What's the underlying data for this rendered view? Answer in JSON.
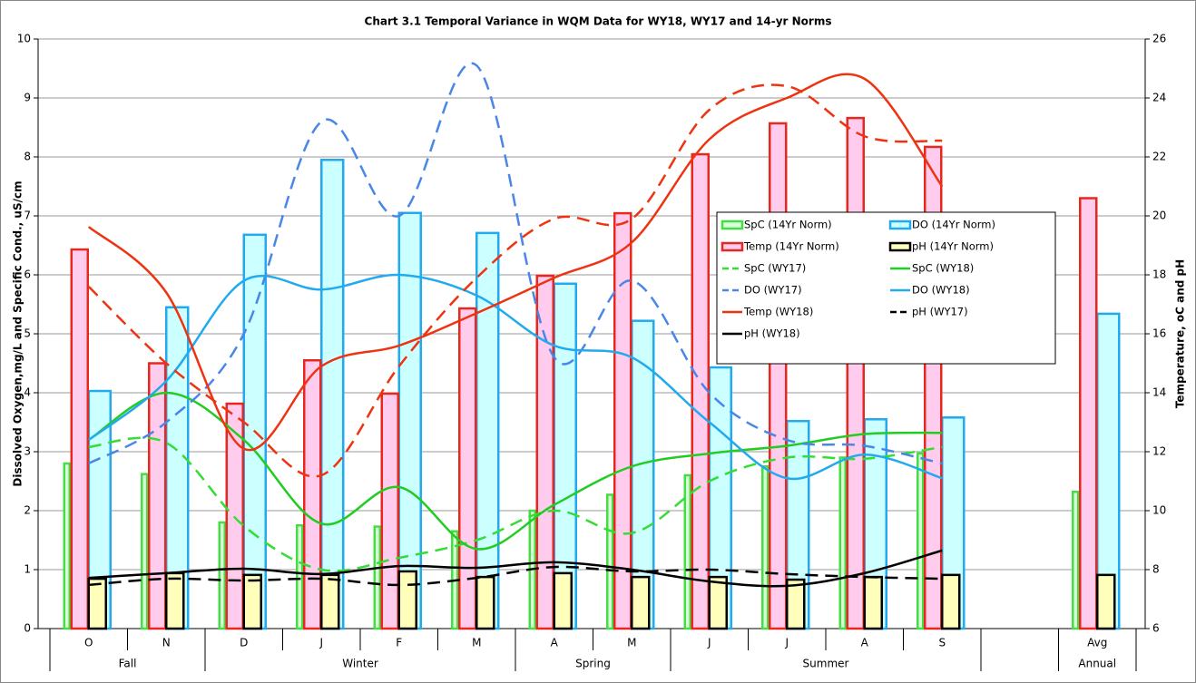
{
  "chart_data": {
    "type": "combo",
    "title": "Chart 3.1  Temporal Variance in WQM Data for WY18, WY17 and 14-yr Norms",
    "y_label": "Dissolved Oxygen,mg/L and Specific Cond., uS/cm",
    "y2_label": "Temperature, oC and pH",
    "categories": [
      "O",
      "N",
      "D",
      "J",
      "F",
      "M",
      "A",
      "M",
      "J",
      "J",
      "A",
      "S",
      null,
      "Avg"
    ],
    "category_groups": [
      "Fall",
      "Fall",
      "Winter",
      "Winter",
      "Winter",
      "Winter",
      "Spring",
      "Spring",
      "Summer",
      "Summer",
      "Summer",
      "Summer",
      null,
      "Annual"
    ],
    "ylim": [
      0,
      10
    ],
    "yticks": [
      0,
      1,
      2,
      3,
      4,
      5,
      6,
      7,
      8,
      9,
      10
    ],
    "y2lim": [
      6,
      26
    ],
    "y2ticks": [
      6,
      8,
      10,
      12,
      14,
      16,
      18,
      20,
      22,
      24,
      26
    ],
    "grid": true,
    "legend": "center-right",
    "series": [
      {
        "name": "SpC (14Yr Norm)",
        "kind": "bar",
        "color": "#44dd44",
        "fill": "#d8ffd8",
        "values": [
          2.8,
          2.62,
          1.8,
          1.75,
          1.73,
          1.65,
          2.0,
          2.27,
          2.6,
          2.75,
          2.9,
          2.97,
          null,
          2.32
        ]
      },
      {
        "name": "DO (14Yr Norm)",
        "kind": "bar",
        "color": "#22aaee",
        "fill": "#ccffff",
        "values": [
          4.03,
          5.45,
          6.68,
          7.95,
          7.05,
          6.71,
          5.85,
          5.22,
          4.43,
          3.52,
          3.55,
          3.58,
          null,
          5.34
        ]
      },
      {
        "name": "Temp (14Yr Norm)",
        "kind": "bar",
        "axis": "y2",
        "color": "#e8281e",
        "fill": "#ffccee",
        "values": [
          18.86,
          15.0,
          13.63,
          15.1,
          13.97,
          16.86,
          17.97,
          20.09,
          22.09,
          23.14,
          23.32,
          22.34,
          null,
          20.6
        ]
      },
      {
        "name": "pH (14Yr Norm)",
        "kind": "bar",
        "axis": "y2",
        "color": "#000000",
        "fill": "#ffffbb",
        "values": [
          7.69,
          7.88,
          7.82,
          7.82,
          7.94,
          7.75,
          7.88,
          7.75,
          7.75,
          7.66,
          7.75,
          7.82,
          null,
          7.82
        ]
      },
      {
        "name": "SpC (WY17)",
        "kind": "line",
        "dash": true,
        "color": "#33dd33",
        "values": [
          3.08,
          3.15,
          1.74,
          1.0,
          1.2,
          1.5,
          2.0,
          1.62,
          2.5,
          2.9,
          2.88,
          3.08,
          null,
          null
        ]
      },
      {
        "name": "SpC (WY18)",
        "kind": "line",
        "color": "#22cc22",
        "values": [
          3.2,
          4.0,
          3.2,
          1.78,
          2.4,
          1.35,
          2.1,
          2.75,
          2.97,
          3.1,
          3.3,
          3.32,
          null,
          null
        ]
      },
      {
        "name": "DO (WY17)",
        "kind": "line",
        "dash": true,
        "color": "#4a86e8",
        "values": [
          2.8,
          3.5,
          5.0,
          8.6,
          7.0,
          9.55,
          4.6,
          5.9,
          4.0,
          3.2,
          3.1,
          2.8,
          null,
          null
        ]
      },
      {
        "name": "DO (WY18)",
        "kind": "line",
        "color": "#22aaee",
        "values": [
          3.2,
          4.2,
          5.9,
          5.75,
          6.0,
          5.65,
          4.8,
          4.6,
          3.5,
          2.55,
          2.95,
          2.55,
          null,
          null
        ]
      },
      {
        "name": "Temp (WY18)",
        "kind": "line",
        "axis": "y2",
        "color": "#ee3311",
        "values": [
          19.63,
          17.4,
          12.1,
          14.9,
          15.6,
          16.7,
          17.9,
          19.1,
          22.6,
          24.0,
          24.65,
          21.0,
          null,
          null
        ]
      },
      {
        "name": "pH (WY17)",
        "kind": "line",
        "axis": "y2",
        "dash": true,
        "color": "#000000",
        "values": [
          7.48,
          7.69,
          7.63,
          7.69,
          7.48,
          7.72,
          8.09,
          7.94,
          8.0,
          7.85,
          7.75,
          7.69,
          null,
          null
        ]
      },
      {
        "name": "pH (WY18)",
        "kind": "line",
        "axis": "y2",
        "color": "#000000",
        "values": [
          7.72,
          7.88,
          8.03,
          7.85,
          8.12,
          8.06,
          8.25,
          8.0,
          7.6,
          7.45,
          7.88,
          8.65,
          null,
          null
        ]
      },
      {
        "kind": "line",
        "axis": "y2",
        "dash": true,
        "color": "#ee3311",
        "values": [
          17.6,
          15.0,
          13.0,
          11.2,
          14.9,
          17.9,
          19.9,
          19.9,
          23.6,
          24.4,
          22.7,
          22.55,
          null,
          null
        ]
      }
    ]
  }
}
